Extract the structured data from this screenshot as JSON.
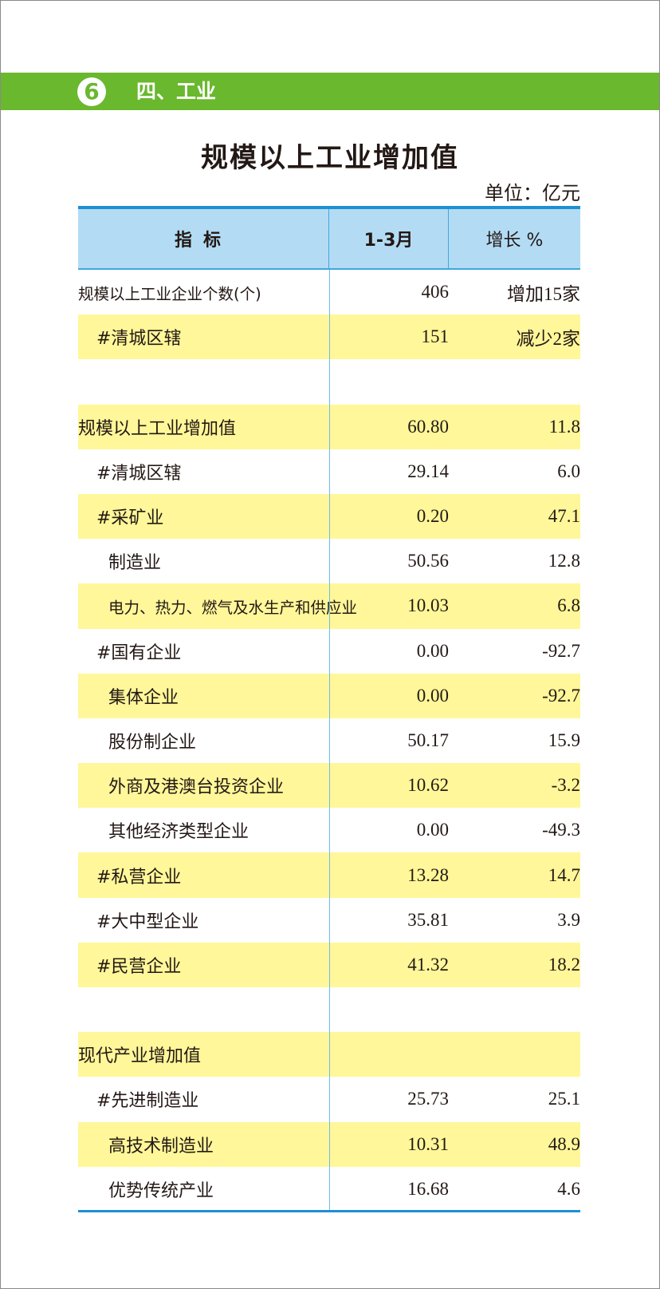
{
  "header": {
    "badge": "6",
    "section": "四、工业"
  },
  "title": "规模以上工业增加值",
  "unit": "单位：亿元",
  "columns": [
    "指标",
    "1-3月",
    "增长 %"
  ],
  "rows": [
    {
      "label": "规模以上工业企业个数(个)",
      "level": 0,
      "value": "406",
      "growth": "增加15家"
    },
    {
      "label": "#清城区辖",
      "level": 1,
      "value": "151",
      "growth": "减少2家"
    },
    {
      "label": "",
      "level": 0,
      "value": "",
      "growth": ""
    },
    {
      "label": "规模以上工业增加值",
      "level": 0,
      "value": "60.80",
      "growth": "11.8"
    },
    {
      "label": "#清城区辖",
      "level": 1,
      "value": "29.14",
      "growth": "6.0"
    },
    {
      "label": "#采矿业",
      "level": 1,
      "value": "0.20",
      "growth": "47.1"
    },
    {
      "label": "制造业",
      "level": 2,
      "value": "50.56",
      "growth": "12.8"
    },
    {
      "label": "电力、热力、燃气及水生产和供应业",
      "level": 2,
      "value": "10.03",
      "growth": "6.8"
    },
    {
      "label": "#国有企业",
      "level": 1,
      "value": "0.00",
      "growth": "-92.7"
    },
    {
      "label": "集体企业",
      "level": 2,
      "value": "0.00",
      "growth": "-92.7"
    },
    {
      "label": "股份制企业",
      "level": 2,
      "value": "50.17",
      "growth": "15.9"
    },
    {
      "label": "外商及港澳台投资企业",
      "level": 2,
      "value": "10.62",
      "growth": "-3.2"
    },
    {
      "label": "其他经济类型企业",
      "level": 2,
      "value": "0.00",
      "growth": "-49.3"
    },
    {
      "label": "#私营企业",
      "level": 1,
      "value": "13.28",
      "growth": "14.7"
    },
    {
      "label": "#大中型企业",
      "level": 1,
      "value": "35.81",
      "growth": "3.9"
    },
    {
      "label": "#民营企业",
      "level": 1,
      "value": "41.32",
      "growth": "18.2"
    },
    {
      "label": "",
      "level": 0,
      "value": "",
      "growth": ""
    },
    {
      "label": "现代产业增加值",
      "level": 0,
      "value": "",
      "growth": ""
    },
    {
      "label": "#先进制造业",
      "level": 1,
      "value": "25.73",
      "growth": "25.1"
    },
    {
      "label": "高技术制造业",
      "level": 2,
      "value": "10.31",
      "growth": "48.9"
    },
    {
      "label": "优势传统产业",
      "level": 2,
      "value": "16.68",
      "growth": "4.6"
    }
  ],
  "colors": {
    "banner": "#6ab82e",
    "header_bg": "#b3dcf4",
    "rule": "#1f8fd4",
    "stripe": "#fff799"
  }
}
